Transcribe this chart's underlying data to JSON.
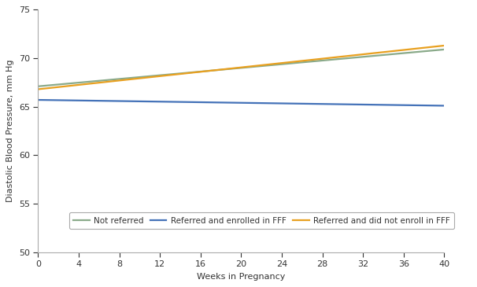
{
  "title": "",
  "xlabel": "Weeks in Pregnancy",
  "ylabel": "Diastolic Blood Pressure, mm Hg",
  "xlim": [
    0,
    40
  ],
  "ylim": [
    50,
    75
  ],
  "yticks": [
    50,
    55,
    60,
    65,
    70,
    75
  ],
  "xticks": [
    0,
    4,
    8,
    12,
    16,
    20,
    24,
    28,
    32,
    36,
    40
  ],
  "series": [
    {
      "label": "Not referred",
      "color": "#8aaa8a",
      "x": [
        0,
        40
      ],
      "y": [
        67.1,
        70.9
      ]
    },
    {
      "label": "Referred and enrolled in FFF",
      "color": "#4472b8",
      "x": [
        0,
        40
      ],
      "y": [
        65.7,
        65.1
      ]
    },
    {
      "label": "Referred and did not enroll in FFF",
      "color": "#e8a020",
      "x": [
        0,
        40
      ],
      "y": [
        66.8,
        71.3
      ]
    }
  ],
  "background_color": "#ffffff",
  "spine_color": "#aaaaaa",
  "linewidth": 1.6,
  "tick_labelsize": 8,
  "axis_labelsize": 8,
  "legend_fontsize": 7.5
}
